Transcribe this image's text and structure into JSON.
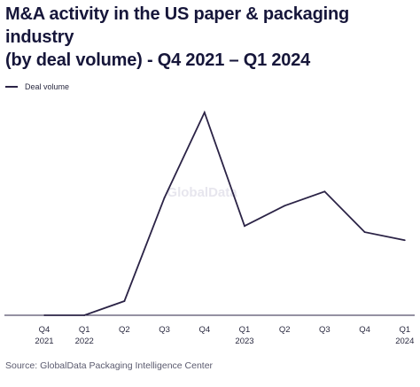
{
  "chart_data": {
    "type": "line",
    "title_line1": "M&A activity in the US paper & packaging industry",
    "title_line2": "(by deal volume) - Q4 2021 – Q1 2024",
    "xlabel": "",
    "ylabel": "",
    "legend_placement": "top-left",
    "grid": false,
    "watermark": "GlobalData",
    "categories": [
      [
        "Q4",
        "2021"
      ],
      [
        "Q1",
        "2022"
      ],
      [
        "Q2",
        ""
      ],
      [
        "Q3",
        ""
      ],
      [
        "Q4",
        ""
      ],
      [
        "Q1",
        "2023"
      ],
      [
        "Q2",
        ""
      ],
      [
        "Q3",
        ""
      ],
      [
        "Q4",
        ""
      ],
      [
        "Q1",
        "2024"
      ]
    ],
    "series": [
      {
        "name": "Deal volume",
        "color": "#2b2346",
        "values": [
          0,
          0,
          7,
          58,
          100,
          44,
          54,
          61,
          41,
          37
        ]
      }
    ],
    "ylim": [
      0,
      100
    ]
  },
  "source": "Source: GlobalData Packaging Intelligence Center"
}
